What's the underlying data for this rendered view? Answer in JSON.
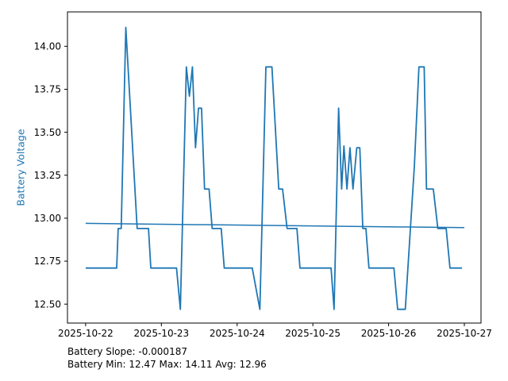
{
  "chart_data": {
    "type": "line",
    "title": "",
    "xlabel": "",
    "ylabel": "Battery Voltage",
    "x_unit": "days since 2025-10-22",
    "xlim": [
      -0.24,
      5.22
    ],
    "ylim": [
      12.39,
      14.2
    ],
    "grid": false,
    "legend": "none",
    "xticks": [
      {
        "d": 0,
        "label": "2025-10-22"
      },
      {
        "d": 1,
        "label": "2025-10-23"
      },
      {
        "d": 2,
        "label": "2025-10-24"
      },
      {
        "d": 3,
        "label": "2025-10-25"
      },
      {
        "d": 4,
        "label": "2025-10-26"
      },
      {
        "d": 5,
        "label": "2025-10-27"
      }
    ],
    "yticks": [
      {
        "v": 12.5,
        "label": "12.50"
      },
      {
        "v": 12.75,
        "label": "12.75"
      },
      {
        "v": 13.0,
        "label": "13.00"
      },
      {
        "v": 13.25,
        "label": "13.25"
      },
      {
        "v": 13.5,
        "label": "13.50"
      },
      {
        "v": 13.75,
        "label": "13.75"
      },
      {
        "v": 14.0,
        "label": "14.00"
      }
    ],
    "series": [
      {
        "name": "battery-voltage",
        "color": "#1f77b4",
        "width": 1.8,
        "points": [
          [
            0.0,
            12.71
          ],
          [
            0.41,
            12.71
          ],
          [
            0.43,
            12.94
          ],
          [
            0.47,
            12.94
          ],
          [
            0.53,
            14.11
          ],
          [
            0.68,
            12.94
          ],
          [
            0.83,
            12.94
          ],
          [
            0.86,
            12.71
          ],
          [
            1.2,
            12.71
          ],
          [
            1.25,
            12.47
          ],
          [
            1.33,
            13.88
          ],
          [
            1.37,
            13.71
          ],
          [
            1.41,
            13.88
          ],
          [
            1.45,
            13.41
          ],
          [
            1.49,
            13.64
          ],
          [
            1.53,
            13.64
          ],
          [
            1.57,
            13.17
          ],
          [
            1.63,
            13.17
          ],
          [
            1.67,
            12.94
          ],
          [
            1.79,
            12.94
          ],
          [
            1.83,
            12.71
          ],
          [
            2.2,
            12.71
          ],
          [
            2.3,
            12.47
          ],
          [
            2.38,
            13.88
          ],
          [
            2.46,
            13.88
          ],
          [
            2.55,
            13.17
          ],
          [
            2.6,
            13.17
          ],
          [
            2.66,
            12.94
          ],
          [
            2.79,
            12.94
          ],
          [
            2.83,
            12.71
          ],
          [
            3.24,
            12.71
          ],
          [
            3.28,
            12.47
          ],
          [
            3.34,
            13.64
          ],
          [
            3.38,
            13.17
          ],
          [
            3.41,
            13.42
          ],
          [
            3.45,
            13.17
          ],
          [
            3.49,
            13.41
          ],
          [
            3.53,
            13.17
          ],
          [
            3.58,
            13.41
          ],
          [
            3.62,
            13.41
          ],
          [
            3.66,
            12.94
          ],
          [
            3.7,
            12.94
          ],
          [
            3.74,
            12.71
          ],
          [
            4.07,
            12.71
          ],
          [
            4.12,
            12.47
          ],
          [
            4.22,
            12.47
          ],
          [
            4.34,
            13.3
          ],
          [
            4.4,
            13.88
          ],
          [
            4.47,
            13.88
          ],
          [
            4.5,
            13.17
          ],
          [
            4.59,
            13.17
          ],
          [
            4.65,
            12.94
          ],
          [
            4.76,
            12.94
          ],
          [
            4.81,
            12.71
          ],
          [
            4.97,
            12.71
          ]
        ]
      },
      {
        "name": "trend-line",
        "color": "#1f77b4",
        "width": 1.5,
        "points": [
          [
            0.0,
            12.97
          ],
          [
            5.0,
            12.945
          ]
        ]
      }
    ],
    "annotations": [
      "Battery Slope: -0.000187",
      "Battery Min: 12.47 Max: 14.11 Avg: 12.96"
    ],
    "stats": {
      "slope": -0.000187,
      "min": 12.47,
      "max": 14.11,
      "avg": 12.96
    }
  },
  "colors": {
    "accent": "#1f77b4",
    "axis": "#000000",
    "text": "#000000",
    "background": "#ffffff"
  }
}
